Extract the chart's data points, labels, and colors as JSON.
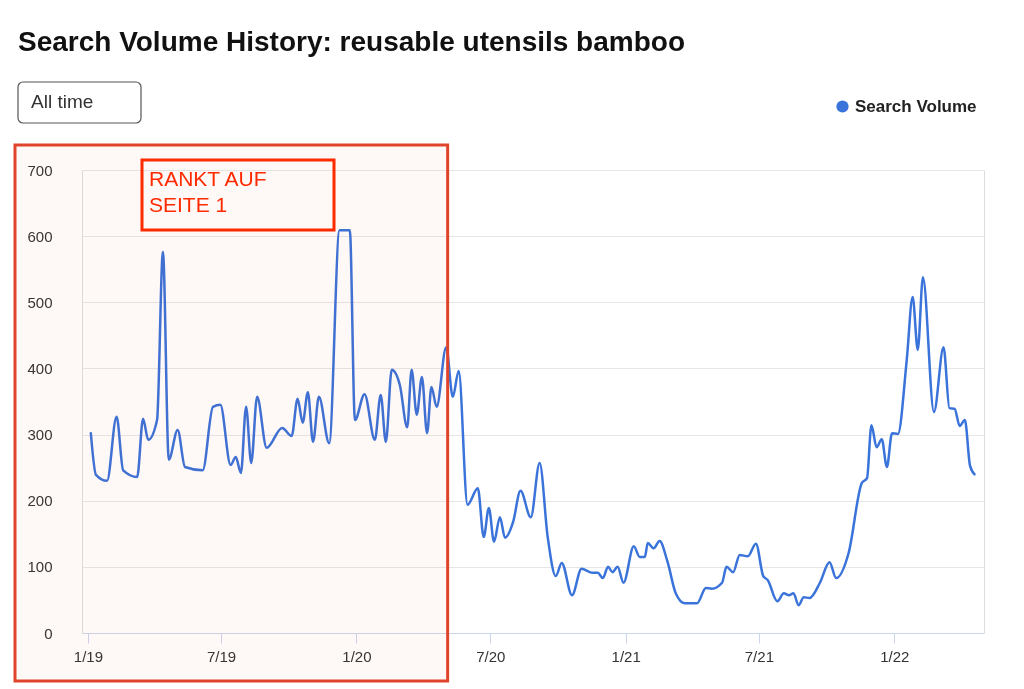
{
  "chart_data": {
    "type": "line",
    "title": "Search Volume History: reusable utensils bamboo",
    "annotations": [
      "All time"
    ],
    "x": [
      "2019-01-05",
      "2019-01-12",
      "2019-01-27",
      "2019-02-09",
      "2019-02-18",
      "2019-03-09",
      "2019-03-17",
      "2019-03-24",
      "2019-04-05",
      "2019-04-13",
      "2019-04-21",
      "2019-05-03",
      "2019-05-13",
      "2019-06-06",
      "2019-06-20",
      "2019-06-30",
      "2019-07-14",
      "2019-07-21",
      "2019-07-28",
      "2019-08-04",
      "2019-08-11",
      "2019-08-19",
      "2019-09-01",
      "2019-09-22",
      "2019-10-05",
      "2019-10-13",
      "2019-10-20",
      "2019-10-27",
      "2019-11-03",
      "2019-11-11",
      "2019-11-25",
      "2019-12-09",
      "2019-12-23",
      "2019-12-30",
      "2020-01-12",
      "2020-01-26",
      "2020-02-03",
      "2020-02-10",
      "2020-02-18",
      "2020-02-29",
      "2020-03-10",
      "2020-03-16",
      "2020-03-23",
      "2020-03-30",
      "2020-04-06",
      "2020-04-12",
      "2020-04-19",
      "2020-05-02",
      "2020-05-11",
      "2020-05-19",
      "2020-05-31",
      "2020-06-14",
      "2020-06-22",
      "2020-06-29",
      "2020-07-06",
      "2020-07-14",
      "2020-07-21",
      "2020-08-01",
      "2020-08-11",
      "2020-08-25",
      "2020-09-06",
      "2020-09-17",
      "2020-09-28",
      "2020-10-06",
      "2020-10-20",
      "2020-11-02",
      "2020-11-17",
      "2020-11-24",
      "2020-12-01",
      "2020-12-08",
      "2020-12-14",
      "2020-12-21",
      "2020-12-29",
      "2021-01-12",
      "2021-01-20",
      "2021-01-27",
      "2021-01-31",
      "2021-02-08",
      "2021-02-16",
      "2021-02-27",
      "2021-03-10",
      "2021-03-22",
      "2021-04-08",
      "2021-04-20",
      "2021-04-28",
      "2021-05-12",
      "2021-05-18",
      "2021-05-27",
      "2021-06-05",
      "2021-06-16",
      "2021-06-27",
      "2021-07-07",
      "2021-07-13",
      "2021-07-26",
      "2021-08-04",
      "2021-08-11",
      "2021-08-17",
      "2021-08-24",
      "2021-08-31",
      "2021-09-08",
      "2021-09-22",
      "2021-10-05",
      "2021-10-14",
      "2021-10-31",
      "2021-11-18",
      "2021-11-25",
      "2021-12-01",
      "2021-12-08",
      "2021-12-15",
      "2021-12-22",
      "2021-12-29",
      "2022-01-06",
      "2022-01-18",
      "2022-01-26",
      "2022-02-02",
      "2022-02-09",
      "2022-02-24",
      "2022-03-09",
      "2022-03-17",
      "2022-03-24",
      "2022-03-31",
      "2022-04-07",
      "2022-04-14",
      "2022-04-20"
    ],
    "series": [
      {
        "name": "Search Volume",
        "color": "#3a73d9",
        "values": [
          302,
          239,
          230,
          327,
          246,
          236,
          324,
          292,
          322,
          576,
          262,
          307,
          251,
          246,
          342,
          345,
          254,
          266,
          242,
          342,
          257,
          357,
          280,
          310,
          298,
          354,
          318,
          364,
          289,
          357,
          287,
          609,
          609,
          322,
          361,
          292,
          360,
          289,
          398,
          375,
          311,
          398,
          330,
          387,
          302,
          372,
          342,
          432,
          357,
          396,
          194,
          219,
          145,
          189,
          138,
          175,
          144,
          168,
          215,
          175,
          257,
          145,
          86,
          106,
          57,
          97,
          91,
          91,
          83,
          100,
          92,
          100,
          76,
          131,
          115,
          115,
          136,
          128,
          139,
          107,
          60,
          45,
          45,
          68,
          67,
          76,
          100,
          92,
          118,
          116,
          135,
          86,
          80,
          48,
          60,
          57,
          60,
          42,
          54,
          53,
          76,
          107,
          83,
          121,
          227,
          234,
          314,
          281,
          293,
          251,
          302,
          301,
          413,
          508,
          428,
          538,
          334,
          432,
          340,
          339,
          313,
          322,
          253,
          240
        ]
      }
    ],
    "xlim": [
      "2018-12-24",
      "2022-05-03"
    ],
    "xticks": [
      {
        "value": "2019-01-01",
        "label": "1/19"
      },
      {
        "value": "2019-07-01",
        "label": "7/19"
      },
      {
        "value": "2020-01-01",
        "label": "1/20"
      },
      {
        "value": "2020-07-01",
        "label": "7/20"
      },
      {
        "value": "2021-01-01",
        "label": "1/21"
      },
      {
        "value": "2021-07-01",
        "label": "7/21"
      },
      {
        "value": "2022-01-01",
        "label": "1/22"
      }
    ],
    "ylim": [
      0,
      700
    ],
    "yticks": [
      0,
      100,
      200,
      300,
      400,
      500,
      600,
      700
    ],
    "grid": "y",
    "legend": "top right",
    "marker": "none",
    "line_style": "solid",
    "bands": [
      {
        "axis": "x",
        "from": "2018-12-24",
        "to": "2020-05-04",
        "label": "RANKT AUF SEITE 1",
        "color": "#e0452b"
      }
    ]
  }
}
